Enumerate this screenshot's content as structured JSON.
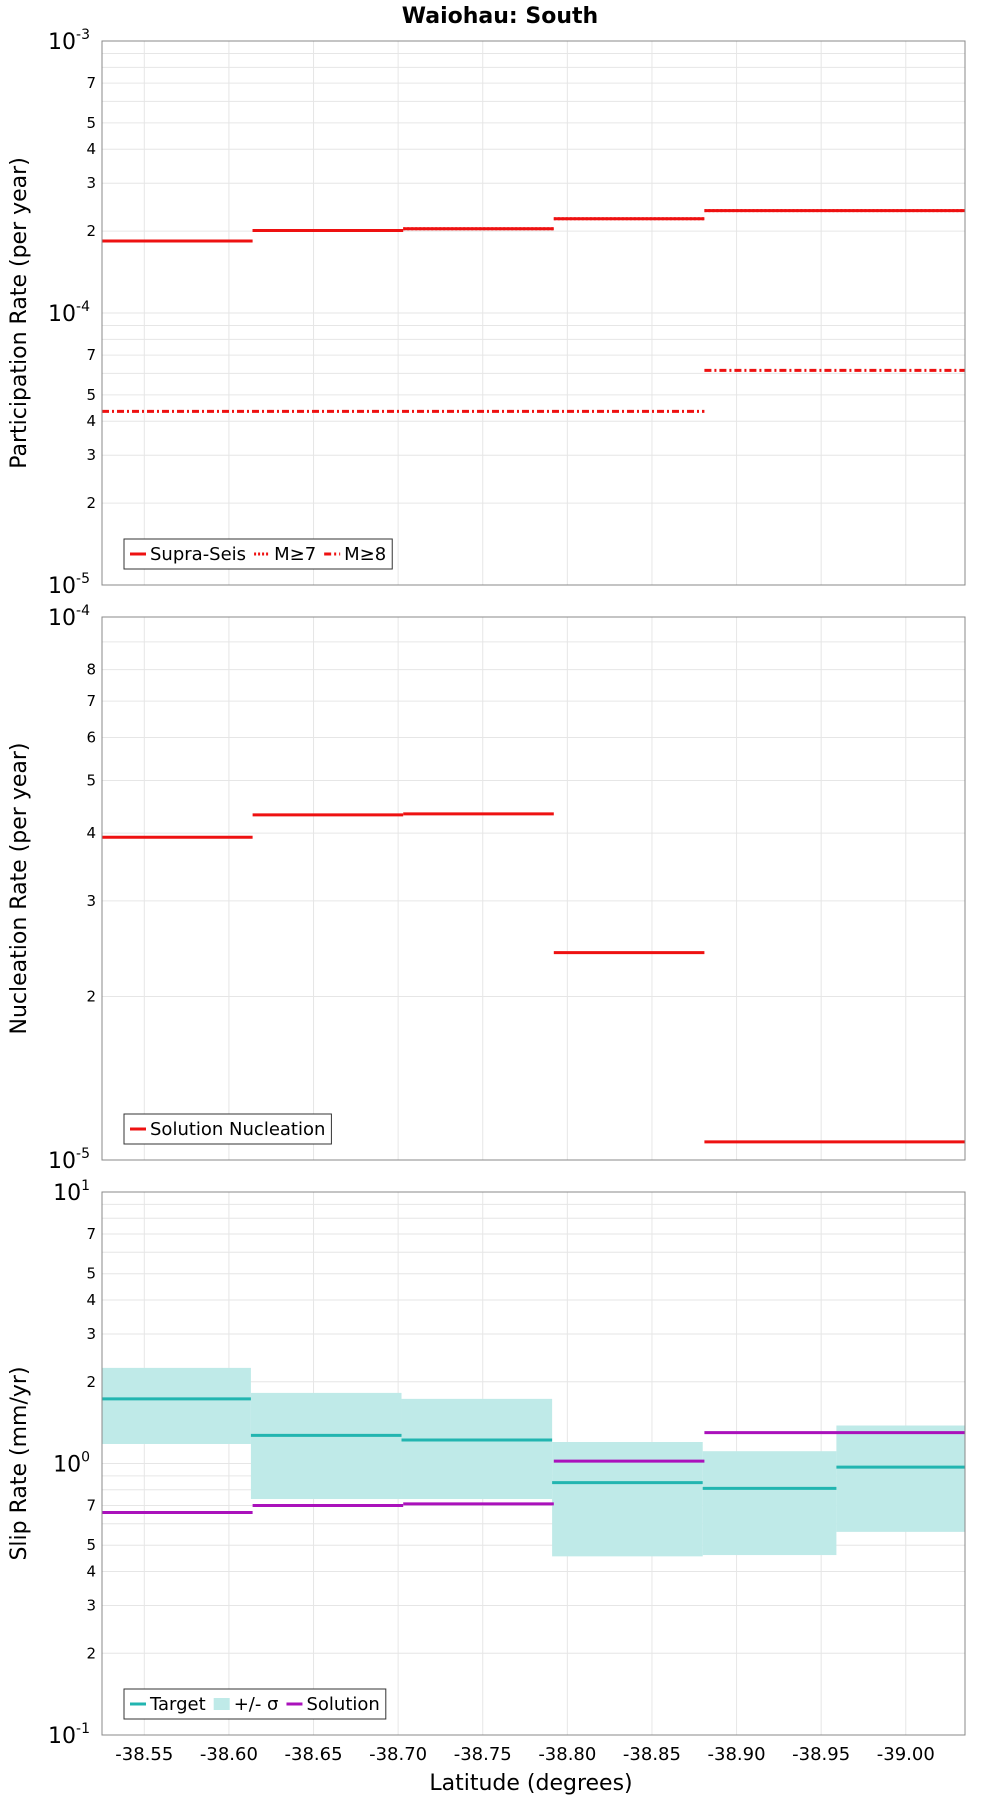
{
  "chart_data": {
    "title": "Waiohau: South",
    "type": "line",
    "xlabel": "Latitude (degrees)",
    "xlim": [
      -38.525,
      -39.035
    ],
    "xticks": [
      "-38.55",
      "-38.60",
      "-38.65",
      "-38.70",
      "-38.75",
      "-38.80",
      "-38.85",
      "-38.90",
      "-38.95",
      "-39.00"
    ],
    "xtick_values": [
      -38.55,
      -38.6,
      -38.65,
      -38.7,
      -38.75,
      -38.8,
      -38.85,
      -38.9,
      -38.95,
      -39.0
    ],
    "panels": [
      {
        "id": "participation",
        "ylabel": "Participation Rate (per year)",
        "yscale": "log",
        "ylim": [
          1e-05,
          0.001
        ],
        "major_ticks": [
          {
            "value": 0.001,
            "base": "10",
            "exp": "-3"
          },
          {
            "value": 0.0001,
            "base": "10",
            "exp": "-4"
          },
          {
            "value": 1e-05,
            "base": "10",
            "exp": "-5"
          }
        ],
        "minor_ticks": [
          {
            "value": 0.0007,
            "label": "7"
          },
          {
            "value": 0.0005,
            "label": "5"
          },
          {
            "value": 0.0004,
            "label": "4"
          },
          {
            "value": 0.0003,
            "label": "3"
          },
          {
            "value": 0.0002,
            "label": "2"
          },
          {
            "value": 7e-05,
            "label": "7"
          },
          {
            "value": 5e-05,
            "label": "5"
          },
          {
            "value": 4e-05,
            "label": "4"
          },
          {
            "value": 3e-05,
            "label": "3"
          },
          {
            "value": 2e-05,
            "label": "2"
          }
        ],
        "legend": [
          {
            "label": "Supra-Seis",
            "style": "solid",
            "color": "#ee1111"
          },
          {
            "label": "M≥7",
            "style": "dotted",
            "color": "#ee1111"
          },
          {
            "label": "M≥8",
            "style": "dashdot",
            "color": "#ee1111"
          }
        ],
        "series": [
          {
            "name": "Supra-Seis",
            "style": "solid",
            "color": "#ee1111",
            "segments": [
              {
                "x0": -38.525,
                "x1": -38.614,
                "y": 0.000184
              },
              {
                "x0": -38.614,
                "x1": -38.703,
                "y": 0.000201
              },
              {
                "x0": -38.703,
                "x1": -38.792,
                "y": 0.000204
              },
              {
                "x0": -38.792,
                "x1": -38.881,
                "y": 0.000222
              },
              {
                "x0": -38.881,
                "x1": -39.035,
                "y": 0.000238
              }
            ]
          },
          {
            "name": "M≥7",
            "style": "dotted",
            "color": "#ee1111",
            "segments": [
              {
                "x0": -38.525,
                "x1": -38.614,
                "y": 0.000184
              },
              {
                "x0": -38.614,
                "x1": -38.703,
                "y": 0.000201
              },
              {
                "x0": -38.703,
                "x1": -38.792,
                "y": 0.000204
              },
              {
                "x0": -38.792,
                "x1": -38.881,
                "y": 0.000222
              },
              {
                "x0": -38.881,
                "x1": -39.035,
                "y": 0.000238
              }
            ]
          },
          {
            "name": "M≥8",
            "style": "dashdot",
            "color": "#ee1111",
            "segments": [
              {
                "x0": -38.525,
                "x1": -38.881,
                "y": 4.35e-05
              },
              {
                "x0": -38.881,
                "x1": -39.035,
                "y": 6.15e-05
              }
            ]
          }
        ]
      },
      {
        "id": "nucleation",
        "ylabel": "Nucleation Rate (per year)",
        "yscale": "log",
        "ylim": [
          1e-05,
          0.0001
        ],
        "major_ticks": [
          {
            "value": 0.0001,
            "base": "10",
            "exp": "-4"
          },
          {
            "value": 1e-05,
            "base": "10",
            "exp": "-5"
          }
        ],
        "minor_ticks": [
          {
            "value": 8e-05,
            "label": "8"
          },
          {
            "value": 7e-05,
            "label": "7"
          },
          {
            "value": 6e-05,
            "label": "6"
          },
          {
            "value": 5e-05,
            "label": "5"
          },
          {
            "value": 4e-05,
            "label": "4"
          },
          {
            "value": 3e-05,
            "label": "3"
          },
          {
            "value": 2e-05,
            "label": "2"
          }
        ],
        "legend": [
          {
            "label": "Solution Nucleation",
            "style": "solid",
            "color": "#ee1111"
          }
        ],
        "series": [
          {
            "name": "Solution Nucleation",
            "style": "solid",
            "color": "#ee1111",
            "segments": [
              {
                "x0": -38.525,
                "x1": -38.614,
                "y": 3.93e-05
              },
              {
                "x0": -38.614,
                "x1": -38.703,
                "y": 4.32e-05
              },
              {
                "x0": -38.703,
                "x1": -38.792,
                "y": 4.34e-05
              },
              {
                "x0": -38.792,
                "x1": -38.881,
                "y": 2.41e-05
              },
              {
                "x0": -38.881,
                "x1": -39.035,
                "y": 1.08e-05
              }
            ]
          }
        ]
      },
      {
        "id": "slip",
        "ylabel": "Slip Rate (mm/yr)",
        "yscale": "log",
        "ylim": [
          0.1,
          10
        ],
        "major_ticks": [
          {
            "value": 10,
            "base": "10",
            "exp": "1"
          },
          {
            "value": 1,
            "base": "10",
            "exp": "0"
          },
          {
            "value": 0.1,
            "base": "10",
            "exp": "-1"
          }
        ],
        "minor_ticks": [
          {
            "value": 7,
            "label": "7"
          },
          {
            "value": 5,
            "label": "5"
          },
          {
            "value": 4,
            "label": "4"
          },
          {
            "value": 3,
            "label": "3"
          },
          {
            "value": 2,
            "label": "2"
          },
          {
            "value": 0.7,
            "label": "7"
          },
          {
            "value": 0.5,
            "label": "5"
          },
          {
            "value": 0.4,
            "label": "4"
          },
          {
            "value": 0.3,
            "label": "3"
          },
          {
            "value": 0.2,
            "label": "2"
          }
        ],
        "legend": [
          {
            "label": "Target",
            "style": "solid",
            "color": "#22b5b0"
          },
          {
            "label": "+/- σ",
            "style": "band",
            "color": "#bfeae8"
          },
          {
            "label": "Solution",
            "style": "solid",
            "color": "#aa11bb"
          }
        ],
        "bands": [
          {
            "x0": -38.525,
            "x1": -38.613,
            "low": 1.18,
            "high": 2.25
          },
          {
            "x0": -38.613,
            "x1": -38.702,
            "low": 0.74,
            "high": 1.82
          },
          {
            "x0": -38.702,
            "x1": -38.791,
            "low": 0.74,
            "high": 1.73
          },
          {
            "x0": -38.791,
            "x1": -38.88,
            "low": 0.455,
            "high": 1.2
          },
          {
            "x0": -38.88,
            "x1": -38.959,
            "low": 0.46,
            "high": 1.11
          },
          {
            "x0": -38.959,
            "x1": -39.035,
            "low": 0.56,
            "high": 1.38
          }
        ],
        "series": [
          {
            "name": "Target",
            "style": "solid",
            "color": "#22b5b0",
            "segments": [
              {
                "x0": -38.525,
                "x1": -38.613,
                "y": 1.73
              },
              {
                "x0": -38.613,
                "x1": -38.702,
                "y": 1.27
              },
              {
                "x0": -38.702,
                "x1": -38.791,
                "y": 1.22
              },
              {
                "x0": -38.791,
                "x1": -38.88,
                "y": 0.85
              },
              {
                "x0": -38.88,
                "x1": -38.959,
                "y": 0.81
              },
              {
                "x0": -38.959,
                "x1": -39.035,
                "y": 0.97
              }
            ]
          },
          {
            "name": "Solution",
            "style": "solid",
            "color": "#aa11bb",
            "segments": [
              {
                "x0": -38.525,
                "x1": -38.614,
                "y": 0.66
              },
              {
                "x0": -38.614,
                "x1": -38.703,
                "y": 0.7
              },
              {
                "x0": -38.703,
                "x1": -38.792,
                "y": 0.71
              },
              {
                "x0": -38.792,
                "x1": -38.881,
                "y": 1.02
              },
              {
                "x0": -38.881,
                "x1": -39.035,
                "y": 1.3
              }
            ]
          }
        ]
      }
    ]
  }
}
